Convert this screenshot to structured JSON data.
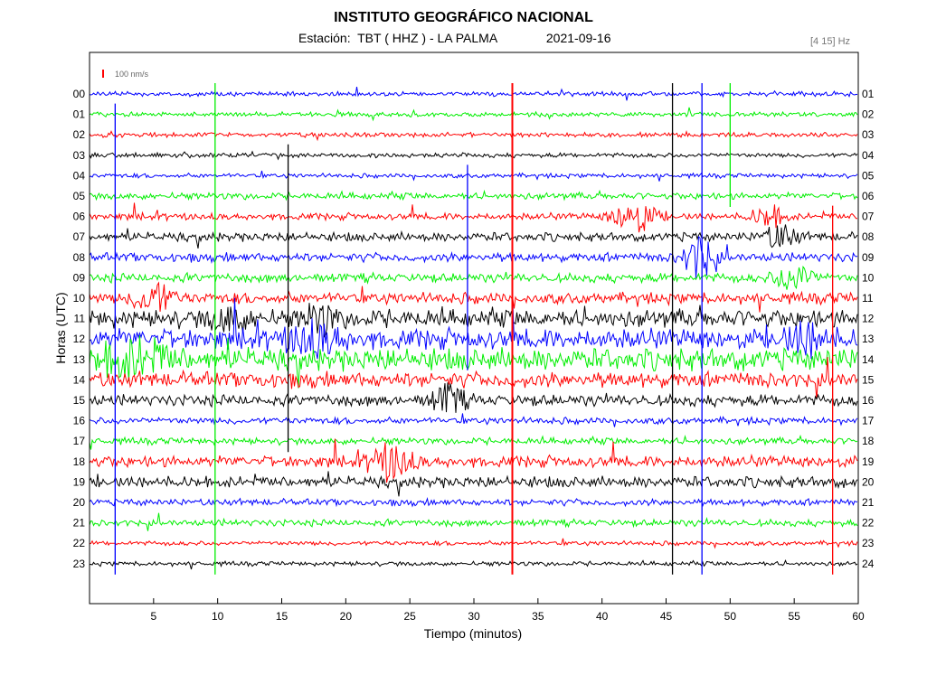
{
  "header": {
    "title": "INSTITUTO GEOGRÁFICO NACIONAL",
    "station_prefix": "Estación:",
    "station": "TBT ( HHZ ) - LA PALMA",
    "date": "2021-09-16",
    "filter": "[4 15] Hz"
  },
  "chart_data": {
    "type": "line",
    "title": "INSTITUTO GEOGRÁFICO NACIONAL",
    "xlabel": "Tiempo (minutos)",
    "ylabel": "Horas (UTC)",
    "xlim": [
      0,
      60
    ],
    "x_ticks": [
      5,
      10,
      15,
      20,
      25,
      30,
      35,
      40,
      45,
      50,
      55,
      60
    ],
    "scale_bar": "100 nm/s",
    "left_hour_labels": [
      "00",
      "01",
      "02",
      "03",
      "04",
      "05",
      "06",
      "07",
      "08",
      "09",
      "10",
      "11",
      "12",
      "13",
      "14",
      "15",
      "16",
      "17",
      "18",
      "19",
      "20",
      "21",
      "22",
      "23"
    ],
    "right_hour_labels": [
      "01",
      "02",
      "03",
      "04",
      "05",
      "06",
      "07",
      "08",
      "09",
      "10",
      "11",
      "12",
      "13",
      "14",
      "15",
      "16",
      "17",
      "18",
      "19",
      "20",
      "21",
      "22",
      "23",
      "24"
    ],
    "trace_colors": [
      "#0000ff",
      "#00ee00",
      "#ff0000",
      "#000000"
    ],
    "events": [
      {
        "hour": 10,
        "minute": 5.0,
        "amplitude": 16,
        "duration_min": 3.5
      },
      {
        "hour": 6,
        "minute": 42.5,
        "amplitude": 18,
        "duration_min": 4.0
      },
      {
        "hour": 6,
        "minute": 53.0,
        "amplitude": 12,
        "duration_min": 3.0
      },
      {
        "hour": 7,
        "minute": 54.0,
        "amplitude": 13,
        "duration_min": 3.0
      },
      {
        "hour": 8,
        "minute": 47.5,
        "amplitude": 22,
        "duration_min": 3.0
      },
      {
        "hour": 9,
        "minute": 55.0,
        "amplitude": 14,
        "duration_min": 3.5
      },
      {
        "hour": 11,
        "minute": 18.0,
        "amplitude": 14,
        "duration_min": 3.0
      },
      {
        "hour": 11,
        "minute": 11.0,
        "amplitude": 10,
        "duration_min": 4.0
      },
      {
        "hour": 12,
        "minute": 17.5,
        "amplitude": 14,
        "duration_min": 5.0
      },
      {
        "hour": 12,
        "minute": 56.0,
        "amplitude": 14,
        "duration_min": 4.0
      },
      {
        "hour": 13,
        "minute": 3.5,
        "amplitude": 16,
        "duration_min": 7.0
      },
      {
        "hour": 15,
        "minute": 28.0,
        "amplitude": 16,
        "duration_min": 3.0
      },
      {
        "hour": 18,
        "minute": 23.5,
        "amplitude": 18,
        "duration_min": 4.0
      }
    ],
    "spikes": [
      {
        "hour": 0,
        "minute": 2.0,
        "span": [
          1,
          23
        ]
      },
      {
        "hour": 0,
        "minute": 9.8,
        "span": [
          0,
          23
        ]
      },
      {
        "hour": 0,
        "minute": 33.0,
        "span": [
          0,
          23
        ]
      },
      {
        "hour": 0,
        "minute": 45.5,
        "span": [
          0,
          23
        ]
      },
      {
        "hour": 0,
        "minute": 47.8,
        "span": [
          0,
          23
        ]
      },
      {
        "hour": 0,
        "minute": 50.0,
        "span": [
          0,
          5
        ]
      },
      {
        "hour": 0,
        "minute": 58.0,
        "span": [
          6,
          23
        ]
      },
      {
        "hour": 0,
        "minute": 15.5,
        "span": [
          3,
          17
        ]
      },
      {
        "hour": 0,
        "minute": 29.5,
        "span": [
          4,
          13
        ]
      }
    ],
    "noise_by_hour": [
      2,
      2,
      2,
      2,
      2,
      3,
      3,
      4,
      4,
      4,
      5,
      8,
      9,
      10,
      7,
      5,
      3,
      3,
      5,
      5,
      3,
      3,
      2,
      2
    ],
    "grid": false,
    "legend": "none"
  }
}
